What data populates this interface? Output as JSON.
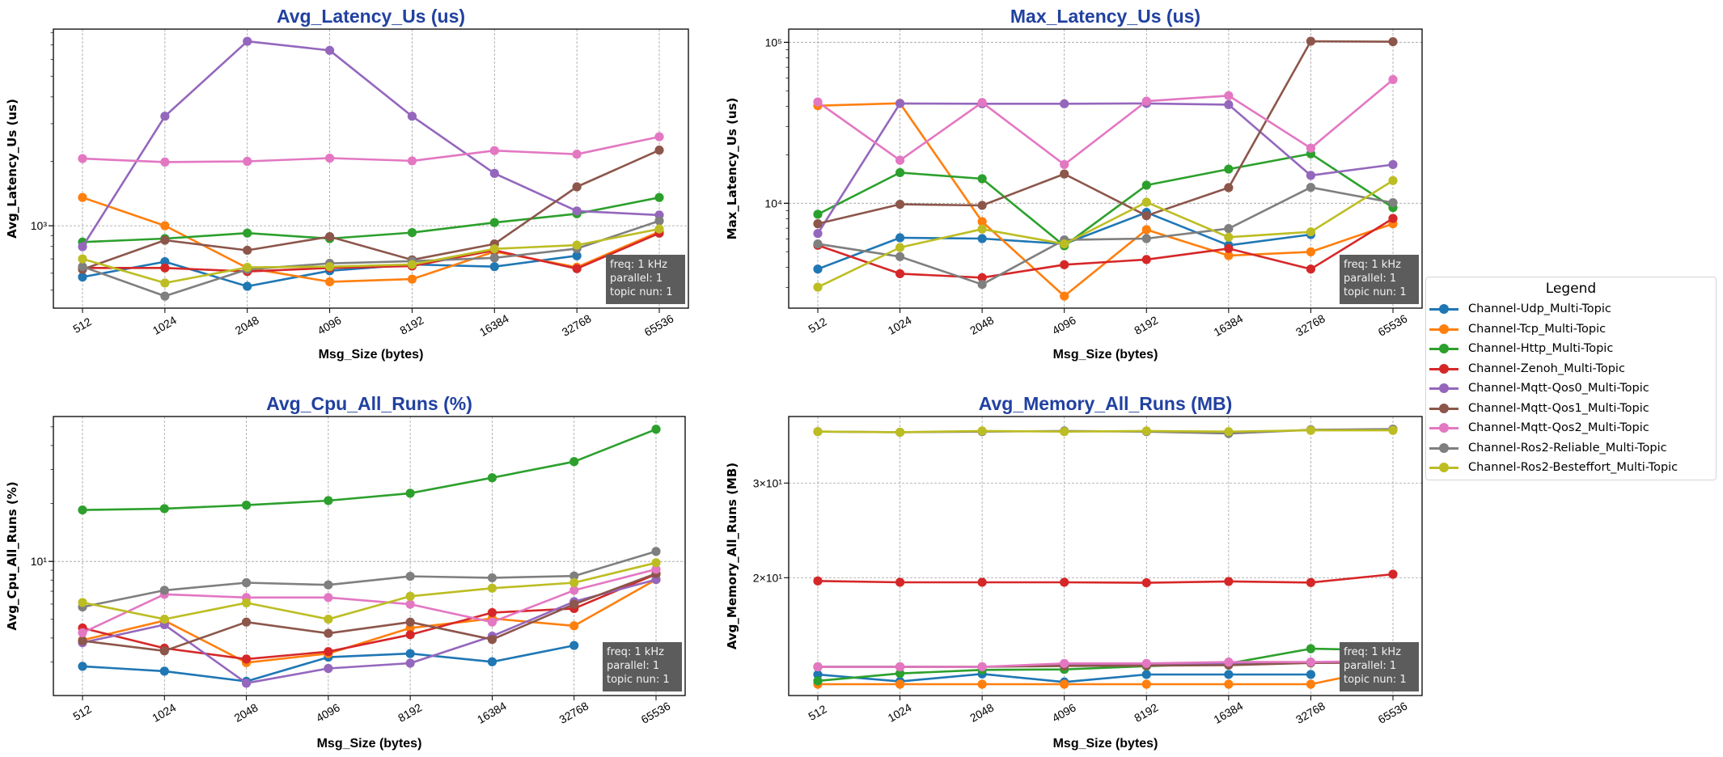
{
  "legend": {
    "title": "Legend",
    "placement": "right",
    "entries": [
      {
        "name": "Channel-Udp_Multi-Topic",
        "color": "#1f77b4"
      },
      {
        "name": "Channel-Tcp_Multi-Topic",
        "color": "#ff7f0e"
      },
      {
        "name": "Channel-Http_Multi-Topic",
        "color": "#2ca02c"
      },
      {
        "name": "Channel-Zenoh_Multi-Topic",
        "color": "#d62728"
      },
      {
        "name": "Channel-Mqtt-Qos0_Multi-Topic",
        "color": "#9467bd"
      },
      {
        "name": "Channel-Mqtt-Qos1_Multi-Topic",
        "color": "#8c564b"
      },
      {
        "name": "Channel-Mqtt-Qos2_Multi-Topic",
        "color": "#e377c2"
      },
      {
        "name": "Channel-Ros2-Reliable_Multi-Topic",
        "color": "#7f7f7f"
      },
      {
        "name": "Channel-Ros2-Besteffort_Multi-Topic",
        "color": "#bcbd22"
      }
    ]
  },
  "chart_data": [
    {
      "type": "line",
      "title": "Avg_Latency_Us  (us)",
      "xlabel": "Msg_Size (bytes)",
      "ylabel": "Avg_Latency_Us (us)",
      "x": [
        "512",
        "1024",
        "2048",
        "4096",
        "8192",
        "16384",
        "32768",
        "65536"
      ],
      "yscale": "log",
      "ylim": [
        412,
        8300
      ],
      "y_ticks": [
        {
          "value": 1000,
          "label": "10³"
        }
      ],
      "grid": true,
      "annotation": [
        "freq: 1 kHz",
        "parallel: 1",
        "topic nun: 1"
      ],
      "series": [
        {
          "name": "Channel-Udp_Multi-Topic",
          "values": [
            576,
            679,
            521,
            616,
            659,
            644,
            724,
            null
          ]
        },
        {
          "name": "Channel-Tcp_Multi-Topic",
          "values": [
            1355,
            1000,
            635,
            547,
            563,
            757,
            640,
            938
          ]
        },
        {
          "name": "Channel-Http_Multi-Topic",
          "values": [
            839,
            871,
            924,
            871,
            929,
            1035,
            1138,
            1355
          ]
        },
        {
          "name": "Channel-Zenoh_Multi-Topic",
          "values": [
            635,
            635,
            611,
            635,
            648,
            768,
            630,
            923
          ]
        },
        {
          "name": "Channel-Mqtt-Qos0_Multi-Topic",
          "values": [
            798,
            3250,
            7280,
            6600,
            3250,
            1757,
            1172,
            1122
          ]
        },
        {
          "name": "Channel-Mqtt-Qos1_Multi-Topic",
          "values": [
            625,
            856,
            768,
            889,
            693,
            822,
            1520,
            2256
          ]
        },
        {
          "name": "Channel-Mqtt-Qos2_Multi-Topic",
          "values": [
            2060,
            1985,
            2000,
            2070,
            2010,
            2245,
            2160,
            2606
          ]
        },
        {
          "name": "Channel-Ros2-Reliable_Multi-Topic",
          "values": [
            644,
            469,
            625,
            667,
            683,
            708,
            782,
            1054
          ]
        },
        {
          "name": "Channel-Ros2-Besteffort_Multi-Topic",
          "values": [
            700,
            540,
            639,
            644,
            659,
            780,
            812,
            966
          ]
        }
      ]
    },
    {
      "type": "line",
      "title": "Max_Latency_Us  (us)",
      "xlabel": "Msg_Size (bytes)",
      "ylabel": "Max_Latency_Us (us)",
      "x": [
        "512",
        "1024",
        "2048",
        "4096",
        "8192",
        "16384",
        "32768",
        "65536"
      ],
      "yscale": "log",
      "ylim": [
        2230,
        120800
      ],
      "y_ticks": [
        {
          "value": 10000,
          "label": "10⁴"
        },
        {
          "value": 100000,
          "label": "10⁵"
        }
      ],
      "grid": true,
      "annotation": [
        "freq: 1 kHz",
        "parallel: 1",
        "topic nun: 1"
      ],
      "series": [
        {
          "name": "Channel-Udp_Multi-Topic",
          "values": [
            3900,
            6100,
            6030,
            5590,
            8770,
            5480,
            6390,
            null
          ]
        },
        {
          "name": "Channel-Tcp_Multi-Topic",
          "values": [
            40400,
            41800,
            7690,
            2650,
            6850,
            4730,
            4990,
            7460
          ]
        },
        {
          "name": "Channel-Http_Multi-Topic",
          "values": [
            8540,
            15500,
            14200,
            5440,
            12950,
            16300,
            20300,
            9400
          ]
        },
        {
          "name": "Channel-Zenoh_Multi-Topic",
          "values": [
            5480,
            3650,
            3450,
            4150,
            4470,
            5230,
            3900,
            8050
          ]
        },
        {
          "name": "Channel-Mqtt-Qos0_Multi-Topic",
          "values": [
            6490,
            41700,
            41500,
            41500,
            41700,
            41000,
            14900,
            17400
          ]
        },
        {
          "name": "Channel-Mqtt-Qos1_Multi-Topic",
          "values": [
            7460,
            9850,
            9700,
            15200,
            8370,
            12500,
            101600,
            100900
          ]
        },
        {
          "name": "Channel-Mqtt-Qos2_Multi-Topic",
          "values": [
            42600,
            18500,
            42300,
            17400,
            43100,
            46600,
            22000,
            58700
          ]
        },
        {
          "name": "Channel-Ros2-Reliable_Multi-Topic",
          "values": [
            5590,
            4660,
            3130,
            5920,
            6030,
            6960,
            12550,
            10080
          ]
        },
        {
          "name": "Channel-Ros2-Besteffort_Multi-Topic",
          "values": [
            3010,
            5310,
            6910,
            5590,
            10150,
            6150,
            6640,
            13830
          ]
        }
      ]
    },
    {
      "type": "line",
      "title": "Avg_Cpu_All_Runs  (%)",
      "xlabel": "Msg_Size (bytes)",
      "ylabel": "Avg_Cpu_All_Runs (%)",
      "x": [
        "512",
        "1024",
        "2048",
        "4096",
        "8192",
        "16384",
        "32768",
        "65536"
      ],
      "yscale": "log",
      "ylim": [
        2.01,
        56.6
      ],
      "y_ticks": [
        {
          "value": 10,
          "label": "10¹"
        }
      ],
      "grid": true,
      "annotation": [
        "freq: 1 kHz",
        "parallel: 1",
        "topic nun: 1"
      ],
      "series": [
        {
          "name": "Channel-Udp_Multi-Topic",
          "values": [
            2.85,
            2.69,
            2.38,
            3.18,
            3.32,
            3.01,
            3.66,
            null
          ]
        },
        {
          "name": "Channel-Tcp_Multi-Topic",
          "values": [
            3.9,
            4.93,
            2.98,
            3.32,
            4.51,
            5.05,
            4.63,
            8.05
          ]
        },
        {
          "name": "Channel-Http_Multi-Topic",
          "values": [
            18.5,
            18.8,
            19.6,
            20.7,
            22.6,
            27.2,
            33.0,
            48.6
          ]
        },
        {
          "name": "Channel-Zenoh_Multi-Topic",
          "values": [
            4.51,
            3.54,
            3.11,
            3.4,
            4.16,
            5.42,
            5.69,
            8.59
          ]
        },
        {
          "name": "Channel-Mqtt-Qos0_Multi-Topic",
          "values": [
            3.78,
            4.69,
            2.33,
            2.78,
            2.96,
            4.09,
            6.18,
            8.05
          ]
        },
        {
          "name": "Channel-Mqtt-Qos1_Multi-Topic",
          "values": [
            3.87,
            3.43,
            4.84,
            4.23,
            4.84,
            3.93,
            5.99,
            8.65
          ]
        },
        {
          "name": "Channel-Mqtt-Qos2_Multi-Topic",
          "values": [
            4.26,
            6.75,
            6.49,
            6.49,
            5.99,
            4.84,
            7.08,
            9.1
          ]
        },
        {
          "name": "Channel-Ros2-Reliable_Multi-Topic",
          "values": [
            5.8,
            7.08,
            7.75,
            7.55,
            8.37,
            8.22,
            8.4,
            11.27
          ]
        },
        {
          "name": "Channel-Ros2-Besteffort_Multi-Topic",
          "values": [
            6.12,
            5.01,
            6.09,
            5.01,
            6.59,
            7.26,
            7.75,
            9.84
          ]
        }
      ]
    },
    {
      "type": "line",
      "title": "Avg_Memory_All_Runs  (MB)",
      "xlabel": "Msg_Size (bytes)",
      "ylabel": "Avg_Memory_All_Runs (MB)",
      "x": [
        "512",
        "1024",
        "2048",
        "4096",
        "8192",
        "16384",
        "32768",
        "65536"
      ],
      "yscale": "log",
      "ylim": [
        12.07,
        39.9
      ],
      "y_ticks": [
        {
          "value": 20,
          "label": "2×10¹"
        },
        {
          "value": 30,
          "label": "3×10¹"
        }
      ],
      "grid": true,
      "annotation": [
        "freq: 1 kHz",
        "parallel: 1",
        "topic nun: 1"
      ],
      "series": [
        {
          "name": "Channel-Udp_Multi-Topic",
          "values": [
            13.21,
            12.82,
            13.24,
            12.79,
            13.21,
            13.21,
            13.21,
            null
          ]
        },
        {
          "name": "Channel-Tcp_Multi-Topic",
          "values": [
            12.67,
            12.67,
            12.67,
            12.67,
            12.67,
            12.67,
            12.67,
            13.63
          ]
        },
        {
          "name": "Channel-Http_Multi-Topic",
          "values": [
            12.85,
            13.27,
            13.47,
            13.5,
            13.69,
            13.85,
            14.75,
            14.66
          ]
        },
        {
          "name": "Channel-Zenoh_Multi-Topic",
          "values": [
            19.72,
            19.61,
            19.61,
            19.61,
            19.57,
            19.68,
            19.59,
            20.3
          ]
        },
        {
          "name": "Channel-Mqtt-Qos0_Multi-Topic",
          "values": [
            13.65,
            13.65,
            13.65,
            13.75,
            13.8,
            13.85,
            13.9,
            13.95
          ]
        },
        {
          "name": "Channel-Mqtt-Qos1_Multi-Topic",
          "values": [
            13.65,
            13.65,
            13.65,
            13.7,
            13.72,
            13.75,
            13.88,
            13.9
          ]
        },
        {
          "name": "Channel-Mqtt-Qos2_Multi-Topic",
          "values": [
            13.65,
            13.65,
            13.65,
            13.85,
            13.85,
            13.93,
            13.93,
            14.0
          ]
        },
        {
          "name": "Channel-Ros2-Reliable_Multi-Topic",
          "values": [
            37.4,
            37.3,
            37.4,
            37.5,
            37.4,
            37.1,
            37.7,
            37.8
          ]
        },
        {
          "name": "Channel-Ros2-Besteffort_Multi-Topic",
          "values": [
            37.4,
            37.3,
            37.5,
            37.4,
            37.5,
            37.4,
            37.6,
            37.6
          ]
        }
      ]
    }
  ]
}
